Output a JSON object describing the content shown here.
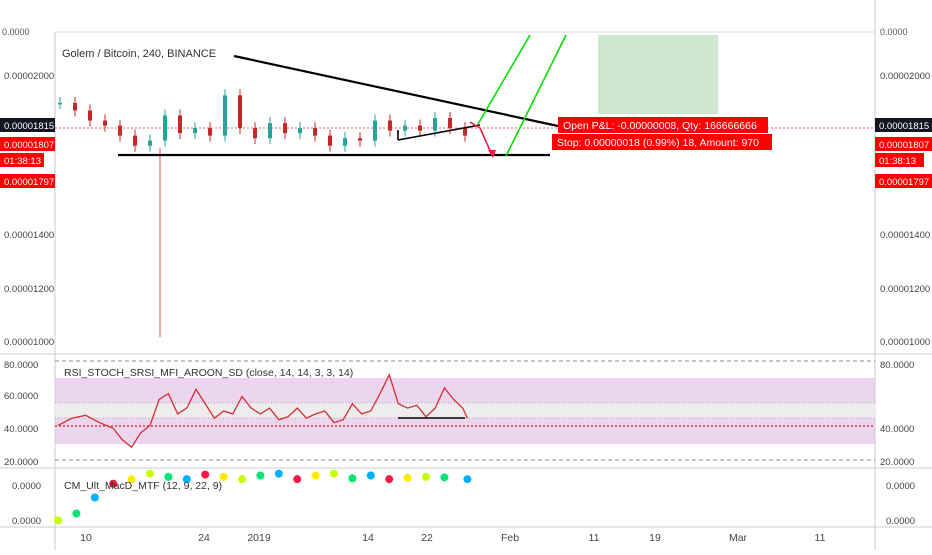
{
  "top_pane": {
    "axis_label": "0.0000"
  },
  "main": {
    "title": "Golem / Bitcoin, 240, BINANCE",
    "y_ticks": [
      "0.00002000",
      "0.00001400",
      "0.00001200",
      "0.00001000"
    ],
    "left_badges": [
      {
        "text": "0.00001815",
        "style": "dark"
      },
      {
        "text": "0.00001807",
        "style": "red"
      },
      {
        "text": "01:38:13",
        "style": "red"
      },
      {
        "text": "0.00001797",
        "style": "red"
      }
    ],
    "right_badges": [
      {
        "text": "0.00001815",
        "style": "dark"
      },
      {
        "text": "0.00001807",
        "style": "red"
      },
      {
        "text": "01:38:13",
        "style": "red"
      },
      {
        "text": "0.00001797",
        "style": "red"
      }
    ],
    "position_box": {
      "line1": "Open P&L: -0.00000008, Qty: 166666666",
      "line2": "Stop: 0.00000018 (0.99%) 18, Amount: 970"
    }
  },
  "rsi_pane": {
    "title": "RSI_STOCH_SRSI_MFI_AROON_SD (close, 14, 14, 3, 3, 14)",
    "y_ticks": [
      "80.0000",
      "60.0000",
      "40.0000",
      "20.0000"
    ],
    "right_ticks": [
      "80.0000",
      "40.0000",
      "20.0000"
    ]
  },
  "macd_pane": {
    "title": "CM_Ult_MacD_MTF (12, 9, 22, 9)",
    "y_ticks": [
      "0.0000",
      "0.0000"
    ]
  },
  "x_axis": {
    "labels": [
      "10",
      "24",
      "2019",
      "14",
      "22",
      "Feb",
      "11",
      "19",
      "Mar",
      "11"
    ]
  },
  "colors": {
    "up": "#26a69a",
    "down": "#c62828",
    "rsi_line": "#d32f2f",
    "rsi_band": "#e1bee7",
    "target_zone": "#c8e6c9",
    "badge_red": "#ff0000",
    "badge_dark": "#131722",
    "projection": "#00e000"
  },
  "chart_data": {
    "type": "candlestick",
    "symbol": "Golem / Bitcoin",
    "interval": "240",
    "exchange": "BINANCE",
    "price_ylim": [
      9.6e-06,
      2.22e-05
    ],
    "price_series": [
      {
        "x": 0,
        "close": 1.95e-05
      },
      {
        "x": 3,
        "close": 1.92e-05
      },
      {
        "x": 6,
        "close": 1.88e-05
      },
      {
        "x": 9,
        "close": 1.86e-05
      },
      {
        "x": 12,
        "close": 1.82e-05
      },
      {
        "x": 15,
        "close": 1.78e-05
      },
      {
        "x": 18,
        "close": 1.8e-05
      },
      {
        "x": 21,
        "close": 1.9e-05
      },
      {
        "x": 24,
        "close": 1.83e-05
      },
      {
        "x": 27,
        "close": 1.85e-05
      },
      {
        "x": 30,
        "close": 1.82e-05
      },
      {
        "x": 33,
        "close": 1.98e-05
      },
      {
        "x": 36,
        "close": 1.85e-05
      },
      {
        "x": 39,
        "close": 1.81e-05
      },
      {
        "x": 42,
        "close": 1.87e-05
      },
      {
        "x": 45,
        "close": 1.83e-05
      },
      {
        "x": 48,
        "close": 1.85e-05
      },
      {
        "x": 51,
        "close": 1.82e-05
      },
      {
        "x": 54,
        "close": 1.78e-05
      },
      {
        "x": 57,
        "close": 1.81e-05
      },
      {
        "x": 60,
        "close": 1.8e-05
      },
      {
        "x": 63,
        "close": 1.88e-05
      },
      {
        "x": 66,
        "close": 1.84e-05
      },
      {
        "x": 69,
        "close": 1.86e-05
      },
      {
        "x": 72,
        "close": 1.84e-05
      },
      {
        "x": 75,
        "close": 1.89e-05
      },
      {
        "x": 78,
        "close": 1.85e-05
      },
      {
        "x": 81,
        "close": 1.82e-05
      }
    ],
    "annotations": [
      "descending triangle",
      "projected breakout",
      "target zone"
    ],
    "rsi": {
      "ylim": [
        12,
        88
      ],
      "levels": [
        80,
        60,
        40,
        20
      ],
      "values": [
        [
          0,
          40
        ],
        [
          3,
          45
        ],
        [
          6,
          47
        ],
        [
          9,
          42
        ],
        [
          12,
          38
        ],
        [
          14,
          30
        ],
        [
          16,
          25
        ],
        [
          18,
          35
        ],
        [
          20,
          40
        ],
        [
          22,
          58
        ],
        [
          24,
          62
        ],
        [
          26,
          48
        ],
        [
          28,
          52
        ],
        [
          30,
          65
        ],
        [
          32,
          55
        ],
        [
          34,
          45
        ],
        [
          36,
          50
        ],
        [
          38,
          48
        ],
        [
          40,
          60
        ],
        [
          42,
          52
        ],
        [
          44,
          48
        ],
        [
          46,
          52
        ],
        [
          48,
          44
        ],
        [
          50,
          46
        ],
        [
          52,
          52
        ],
        [
          54,
          45
        ],
        [
          56,
          48
        ],
        [
          58,
          50
        ],
        [
          60,
          42
        ],
        [
          62,
          44
        ],
        [
          64,
          55
        ],
        [
          66,
          48
        ],
        [
          68,
          50
        ],
        [
          70,
          62
        ],
        [
          72,
          75
        ],
        [
          74,
          55
        ],
        [
          76,
          52
        ],
        [
          78,
          54
        ],
        [
          80,
          46
        ],
        [
          82,
          52
        ],
        [
          84,
          66
        ],
        [
          86,
          58
        ],
        [
          88,
          52
        ],
        [
          89,
          45
        ]
      ]
    },
    "macd": {
      "values": [
        [
          0,
          -0.09
        ],
        [
          4,
          -0.075
        ],
        [
          8,
          -0.04
        ],
        [
          12,
          -0.01
        ],
        [
          16,
          0.0
        ],
        [
          20,
          0.012
        ],
        [
          24,
          0.005
        ],
        [
          28,
          0.0
        ],
        [
          32,
          0.01
        ],
        [
          36,
          0.005
        ],
        [
          40,
          0.0
        ],
        [
          44,
          0.008
        ],
        [
          48,
          0.012
        ],
        [
          52,
          0.0
        ],
        [
          56,
          0.008
        ],
        [
          60,
          0.012
        ],
        [
          64,
          0.002
        ],
        [
          68,
          0.008
        ],
        [
          72,
          0.0
        ],
        [
          76,
          0.003
        ],
        [
          80,
          0.005
        ],
        [
          84,
          0.004
        ],
        [
          89,
          0.0
        ]
      ]
    }
  }
}
